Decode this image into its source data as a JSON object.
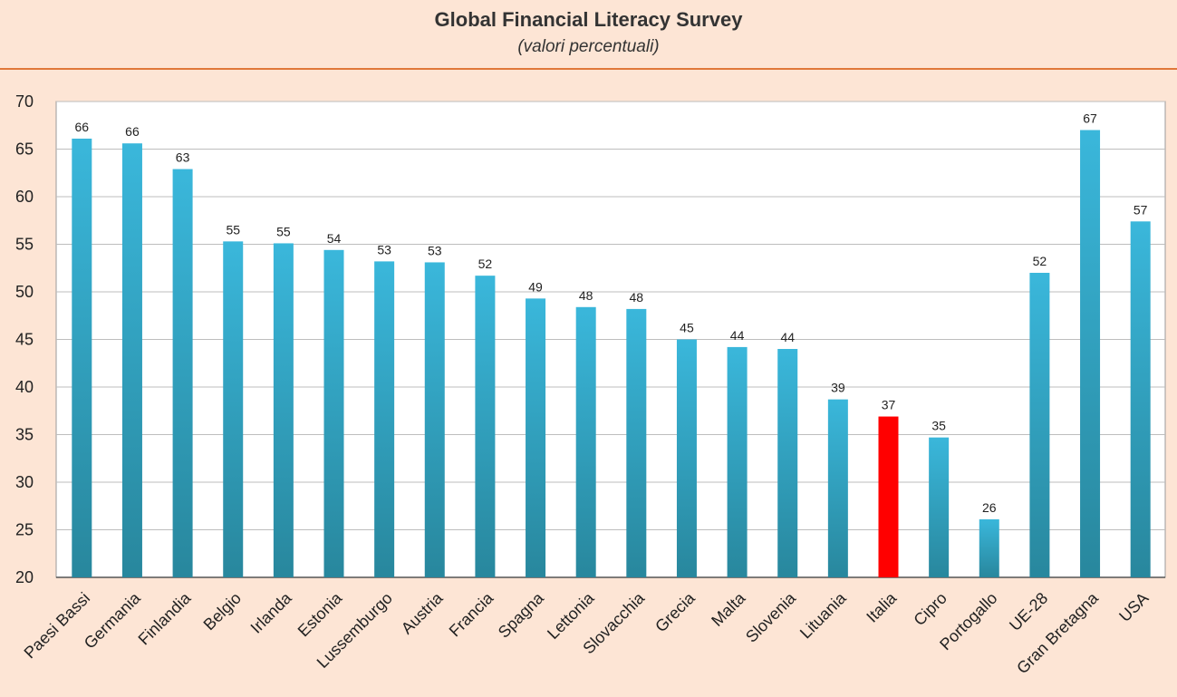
{
  "chart_data": {
    "type": "bar",
    "title": "Global Financial Literacy Survey",
    "subtitle": "(valori percentuali)",
    "xlabel": "",
    "ylabel": "",
    "ylim": [
      20,
      70
    ],
    "yticks": [
      20,
      25,
      30,
      35,
      40,
      45,
      50,
      55,
      60,
      65,
      70
    ],
    "grid": true,
    "legend": "none",
    "categories": [
      "Paesi Bassi",
      "Germania",
      "Finlandia",
      "Belgio",
      "Irlanda",
      "Estonia",
      "Lussemburgo",
      "Austria",
      "Francia",
      "Spagna",
      "Lettonia",
      "Slovacchia",
      "Grecia",
      "Malta",
      "Slovenia",
      "Lituania",
      "Italia",
      "Cipro",
      "Portogallo",
      "UE-28",
      "Gran Bretagna",
      "USA"
    ],
    "values": [
      66.1,
      65.6,
      62.9,
      55.3,
      55.1,
      54.4,
      53.2,
      53.1,
      51.7,
      49.3,
      48.4,
      48.2,
      45.0,
      44.2,
      44.0,
      38.7,
      36.9,
      34.7,
      26.1,
      52.0,
      67.0,
      57.4
    ],
    "data_labels": [
      "66",
      "66",
      "63",
      "55",
      "55",
      "54",
      "53",
      "53",
      "52",
      "49",
      "48",
      "48",
      "45",
      "44",
      "44",
      "39",
      "37",
      "35",
      "26",
      "52",
      "67",
      "57"
    ],
    "highlight_category": "Italia",
    "colors": {
      "bar_top": "#3ab7db",
      "bar_bottom": "#28879d",
      "highlight": "#ff0000",
      "grid": "#bdbdbd",
      "plot_background": "#ffffff",
      "page_background": "#fde5d5",
      "header_rule": "#e0783a"
    }
  }
}
